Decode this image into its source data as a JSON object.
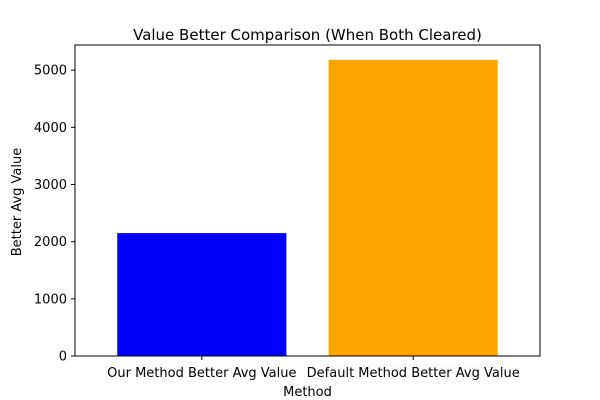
{
  "chart_data": {
    "type": "bar",
    "title": "Value Better Comparison (When Both Cleared)",
    "xlabel": "Method",
    "ylabel": "Better Avg Value",
    "categories": [
      "Our Method Better Avg Value",
      "Default Method Better Avg Value"
    ],
    "values": [
      2150,
      5180
    ],
    "colors": [
      "#0000ff",
      "#ffa500"
    ],
    "ylim": [
      0,
      5440
    ],
    "yticks": [
      0,
      1000,
      2000,
      3000,
      4000,
      5000
    ],
    "grid": false,
    "legend": "none"
  }
}
